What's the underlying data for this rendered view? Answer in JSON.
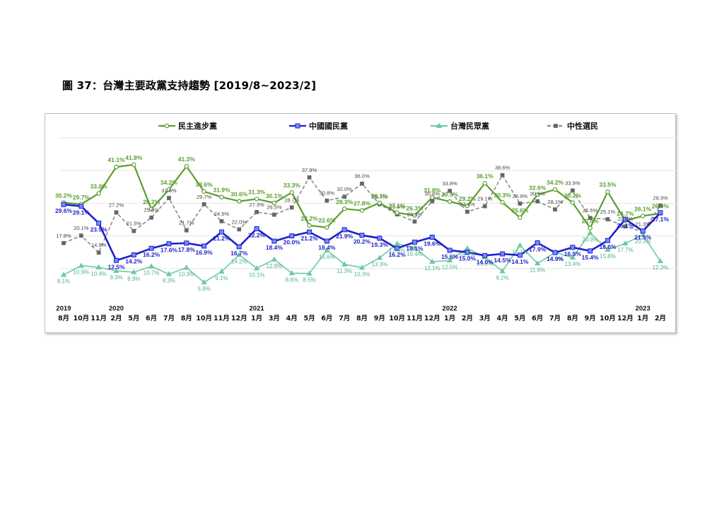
{
  "document": {
    "title": "圖 37：台灣主要政黨支持趨勢 [2019/8~2023/2]"
  },
  "chart_data": {
    "type": "line",
    "title": "",
    "xlabel": "",
    "ylabel": "",
    "ylim": [
      0,
      50
    ],
    "grid": true,
    "legend_position": "top",
    "x_months": [
      "8月",
      "10月",
      "11月",
      "2月",
      "5月",
      "6月",
      "7月",
      "8月",
      "10月",
      "11月",
      "12月",
      "1月",
      "3月",
      "4月",
      "5月",
      "6月",
      "7月",
      "8月",
      "9月",
      "10月",
      "11月",
      "12月",
      "1月",
      "2月",
      "3月",
      "4月",
      "5月",
      "6月",
      "7月",
      "8月",
      "9月",
      "10月",
      "12月",
      "1月",
      "2月"
    ],
    "x_years": [
      {
        "label": "2019",
        "index": 0
      },
      {
        "label": "2020",
        "index": 3
      },
      {
        "label": "2021",
        "index": 11
      },
      {
        "label": "2022",
        "index": 22
      },
      {
        "label": "2023",
        "index": 33
      }
    ],
    "series": [
      {
        "name": "民主進步黨",
        "color": "#5a9e2f",
        "dash": "",
        "marker": "circle",
        "values": [
          30.2,
          29.7,
          33.0,
          41.1,
          41.8,
          28.2,
          34.2,
          41.3,
          33.6,
          31.9,
          30.6,
          31.3,
          30.1,
          33.3,
          23.2,
          22.6,
          28.3,
          27.8,
          30.1,
          27.1,
          26.3,
          31.8,
          30.5,
          29.2,
          36.1,
          30.3,
          25.6,
          32.6,
          34.2,
          30.2,
          22.4,
          33.5,
          24.7,
          26.1,
          26.9
        ]
      },
      {
        "name": "中國國民黨",
        "color": "#1f1fc8",
        "dash": "",
        "marker": "square",
        "values": [
          29.6,
          29.1,
          23.9,
          12.5,
          14.2,
          16.2,
          17.6,
          17.8,
          16.9,
          21.2,
          16.7,
          22.2,
          18.4,
          20.0,
          21.2,
          18.4,
          21.9,
          20.2,
          19.3,
          16.2,
          18.1,
          19.6,
          15.6,
          15.0,
          14.0,
          14.5,
          14.1,
          17.9,
          14.9,
          16.5,
          15.4,
          18.6,
          25.1,
          21.5,
          27.1
        ]
      },
      {
        "name": "台灣民眾黨",
        "color": "#6fc9a0",
        "dash": "",
        "marker": "triangle",
        "values": [
          8.1,
          10.9,
          10.4,
          9.3,
          8.9,
          10.7,
          8.3,
          10.3,
          5.8,
          9.1,
          14.2,
          10.1,
          12.8,
          8.6,
          8.5,
          15.6,
          11.3,
          10.3,
          13.3,
          17.6,
          16.4,
          12.1,
          12.5,
          16.2,
          13.5,
          9.2,
          17.1,
          11.6,
          14.9,
          13.4,
          20.9,
          15.8,
          17.7,
          20.3,
          12.3
        ]
      },
      {
        "name": "中性選民",
        "color": "#8a8a8a",
        "dash": "5,3",
        "marker": "square-small",
        "values": [
          17.8,
          20.1,
          14.9,
          27.2,
          21.5,
          25.6,
          31.6,
          21.7,
          29.7,
          24.5,
          22.0,
          27.3,
          26.5,
          28.7,
          37.9,
          30.8,
          32.0,
          36.0,
          29.7,
          26.6,
          24.4,
          30.6,
          33.8,
          27.4,
          29.1,
          38.6,
          29.9,
          30.6,
          28.1,
          33.9,
          25.5,
          25.1,
          22.9,
          21.3,
          29.3
        ]
      }
    ]
  }
}
